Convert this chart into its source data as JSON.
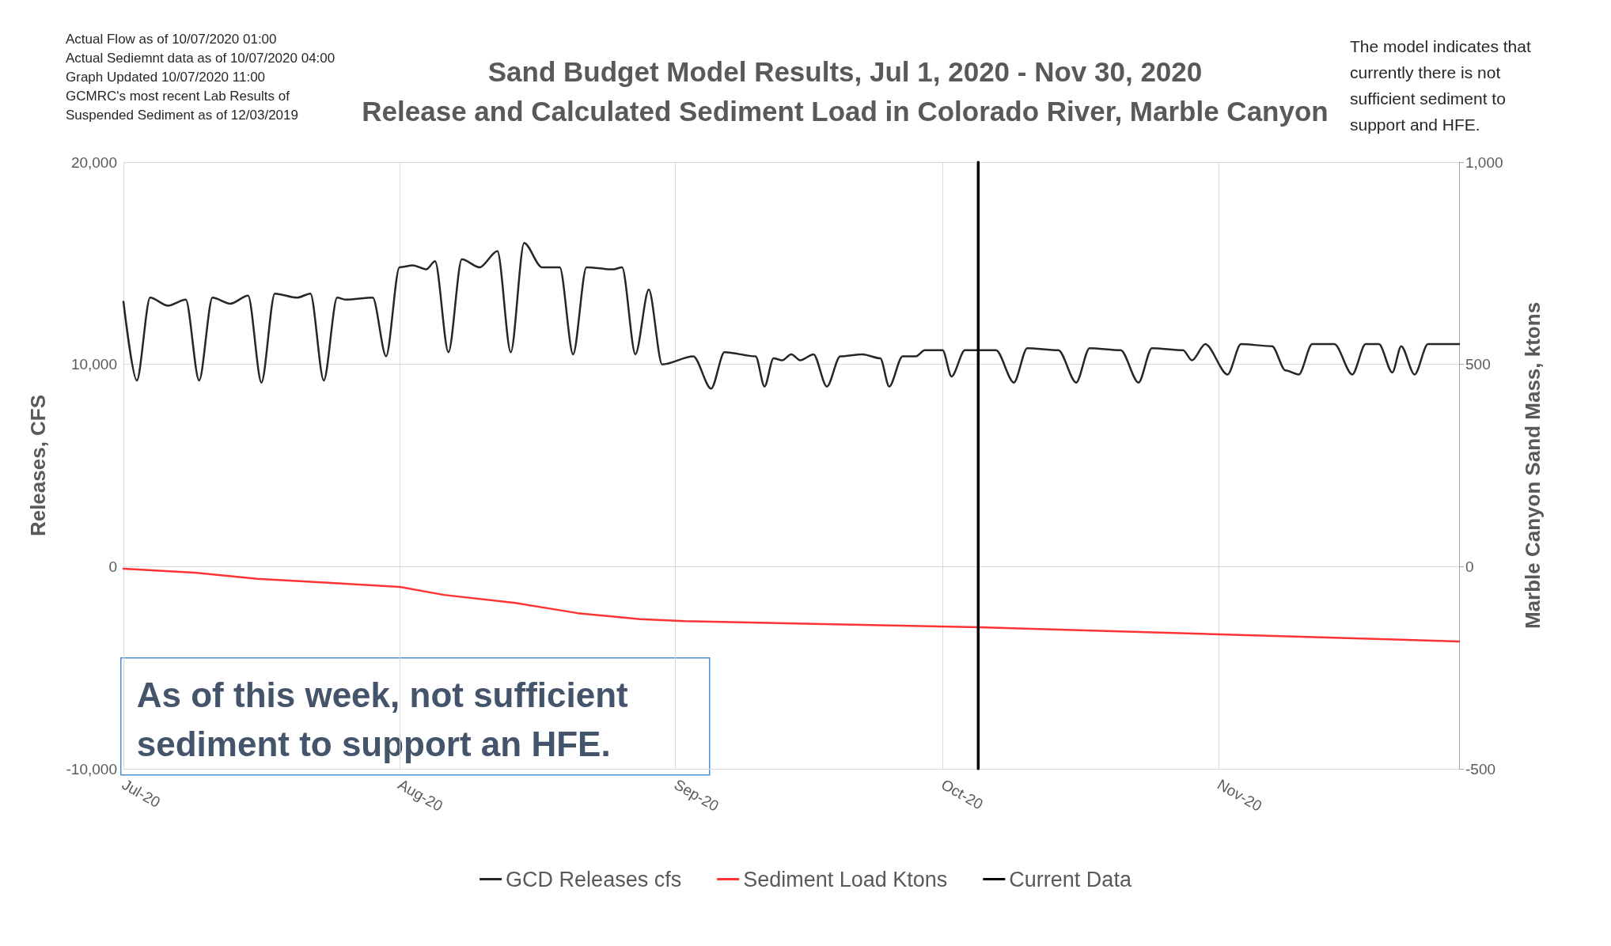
{
  "chart_data": {
    "type": "line",
    "title": "Sand Budget Model Results, Jul 1, 2020 - Nov 30, 2020",
    "subtitle": "Release and Calculated Sediment Load in Colorado River, Marble Canyon",
    "ylabel": "Releases, CFS",
    "y2label": "Marble Canyon Sand Mass, ktons",
    "annotations": [
      "Actual Flow as of 10/07/2020 01:00",
      "Actual Sediemnt data as of 10/07/2020 04:00",
      "Graph Updated 10/07/2020 11:00",
      "GCMRC's most recent Lab Results of",
      "Suspended Sediment as of 12/03/2019",
      "The model indicates that currently there is not sufficient sediment to support and HFE.",
      "As of this week, not sufficient sediment to support an HFE."
    ],
    "xlim": [
      "2020-07-01",
      "2020-11-28"
    ],
    "xticks": [
      {
        "value": "2020-07-01",
        "label": "Jul-20"
      },
      {
        "value": "2020-08-01",
        "label": "Aug-20"
      },
      {
        "value": "2020-09-01",
        "label": "Sep-20"
      },
      {
        "value": "2020-10-01",
        "label": "Oct-20"
      },
      {
        "value": "2020-11-01",
        "label": "Nov-20"
      }
    ],
    "ylim": [
      -10000,
      20000
    ],
    "yticks": [
      {
        "value": -10000,
        "label": "-10,000"
      },
      0,
      {
        "value": 10000,
        "label": "10,000"
      },
      {
        "value": 20000,
        "label": "20,000"
      }
    ],
    "y2lim": [
      -500,
      1000
    ],
    "y2ticks": [
      -500,
      0,
      500,
      {
        "value": 1000,
        "label": "1,000"
      }
    ],
    "grid": true,
    "legend": "bottom",
    "line_style": "solid",
    "marker": "none",
    "series": [
      {
        "name": "GCD Releases cfs",
        "color": "#262626",
        "x": [
          "2020-07-01",
          "2020-07-02T12:00",
          "2020-07-04",
          "2020-07-06",
          "2020-07-08",
          "2020-07-09T12:00",
          "2020-07-11",
          "2020-07-13",
          "2020-07-15",
          "2020-07-16T12:00",
          "2020-07-18",
          "2020-07-20T12:00",
          "2020-07-22",
          "2020-07-23T12:00",
          "2020-07-25",
          "2020-07-26",
          "2020-07-29",
          "2020-07-30T12:00",
          "2020-08-01",
          "2020-08-02T12:00",
          "2020-08-04",
          "2020-08-05",
          "2020-08-06T12:00",
          "2020-08-08",
          "2020-08-10",
          "2020-08-12",
          "2020-08-13T12:00",
          "2020-08-15",
          "2020-08-17",
          "2020-08-19",
          "2020-08-20T12:00",
          "2020-08-22",
          "2020-08-25",
          "2020-08-26",
          "2020-08-27T12:00",
          "2020-08-29",
          "2020-08-30T12:00",
          "2020-09-03",
          "2020-09-05",
          "2020-09-06T12:00",
          "2020-09-10",
          "2020-09-11",
          "2020-09-12",
          "2020-09-13",
          "2020-09-14",
          "2020-09-15",
          "2020-09-16T12:00",
          "2020-09-18",
          "2020-09-19T12:00",
          "2020-09-22",
          "2020-09-24",
          "2020-09-25",
          "2020-09-26T12:00",
          "2020-09-28",
          "2020-09-29",
          "2020-10-01",
          "2020-10-02",
          "2020-10-03T12:00",
          "2020-10-07",
          "2020-10-09",
          "2020-10-10T12:00",
          "2020-10-14",
          "2020-10-16",
          "2020-10-17T12:00",
          "2020-10-21",
          "2020-10-23",
          "2020-10-24T12:00",
          "2020-10-28",
          "2020-10-29",
          "2020-10-30T12:00",
          "2020-11-02",
          "2020-11-03T12:00",
          "2020-11-07",
          "2020-11-08T12:00",
          "2020-11-10",
          "2020-11-11T12:00",
          "2020-11-14",
          "2020-11-16",
          "2020-11-17T12:00",
          "2020-11-19",
          "2020-11-20T12:00",
          "2020-11-21T12:00",
          "2020-11-23",
          "2020-11-24T12:00",
          "2020-11-28"
        ],
        "values": [
          13100,
          9200,
          13300,
          12900,
          13200,
          9200,
          13300,
          13000,
          13400,
          9100,
          13500,
          13300,
          13500,
          9200,
          13300,
          13200,
          13300,
          10400,
          14800,
          14900,
          14700,
          15100,
          10600,
          15200,
          14800,
          15600,
          10600,
          16000,
          14800,
          14800,
          10500,
          14800,
          14700,
          14800,
          10500,
          13700,
          10000,
          10400,
          8800,
          10600,
          10400,
          8900,
          10300,
          10200,
          10500,
          10200,
          10500,
          8900,
          10400,
          10500,
          10300,
          8900,
          10400,
          10400,
          10700,
          10700,
          9400,
          10700,
          10700,
          9100,
          10800,
          10700,
          9100,
          10800,
          10700,
          9100,
          10800,
          10700,
          10200,
          11000,
          9500,
          11000,
          10900,
          9700,
          9500,
          11000,
          11000,
          9500,
          11000,
          11000,
          9600,
          10900,
          9500,
          11000,
          11000
        ]
      },
      {
        "name": "Sediment Load Ktons",
        "color": "#ff3333",
        "axis": "y2",
        "x": [
          "2020-07-01",
          "2020-07-09",
          "2020-07-16",
          "2020-07-24",
          "2020-08-01",
          "2020-08-06",
          "2020-08-14",
          "2020-08-21",
          "2020-08-28",
          "2020-09-02",
          "2020-10-05",
          "2020-11-28"
        ],
        "values": [
          -5,
          -15,
          -30,
          -40,
          -50,
          -70,
          -90,
          -115,
          -130,
          -135,
          -150,
          -185
        ]
      },
      {
        "name": "Current Data",
        "color": "#000000",
        "x": [
          "2020-10-05",
          "2020-10-05"
        ],
        "values": [
          -10000,
          20000
        ]
      }
    ]
  }
}
